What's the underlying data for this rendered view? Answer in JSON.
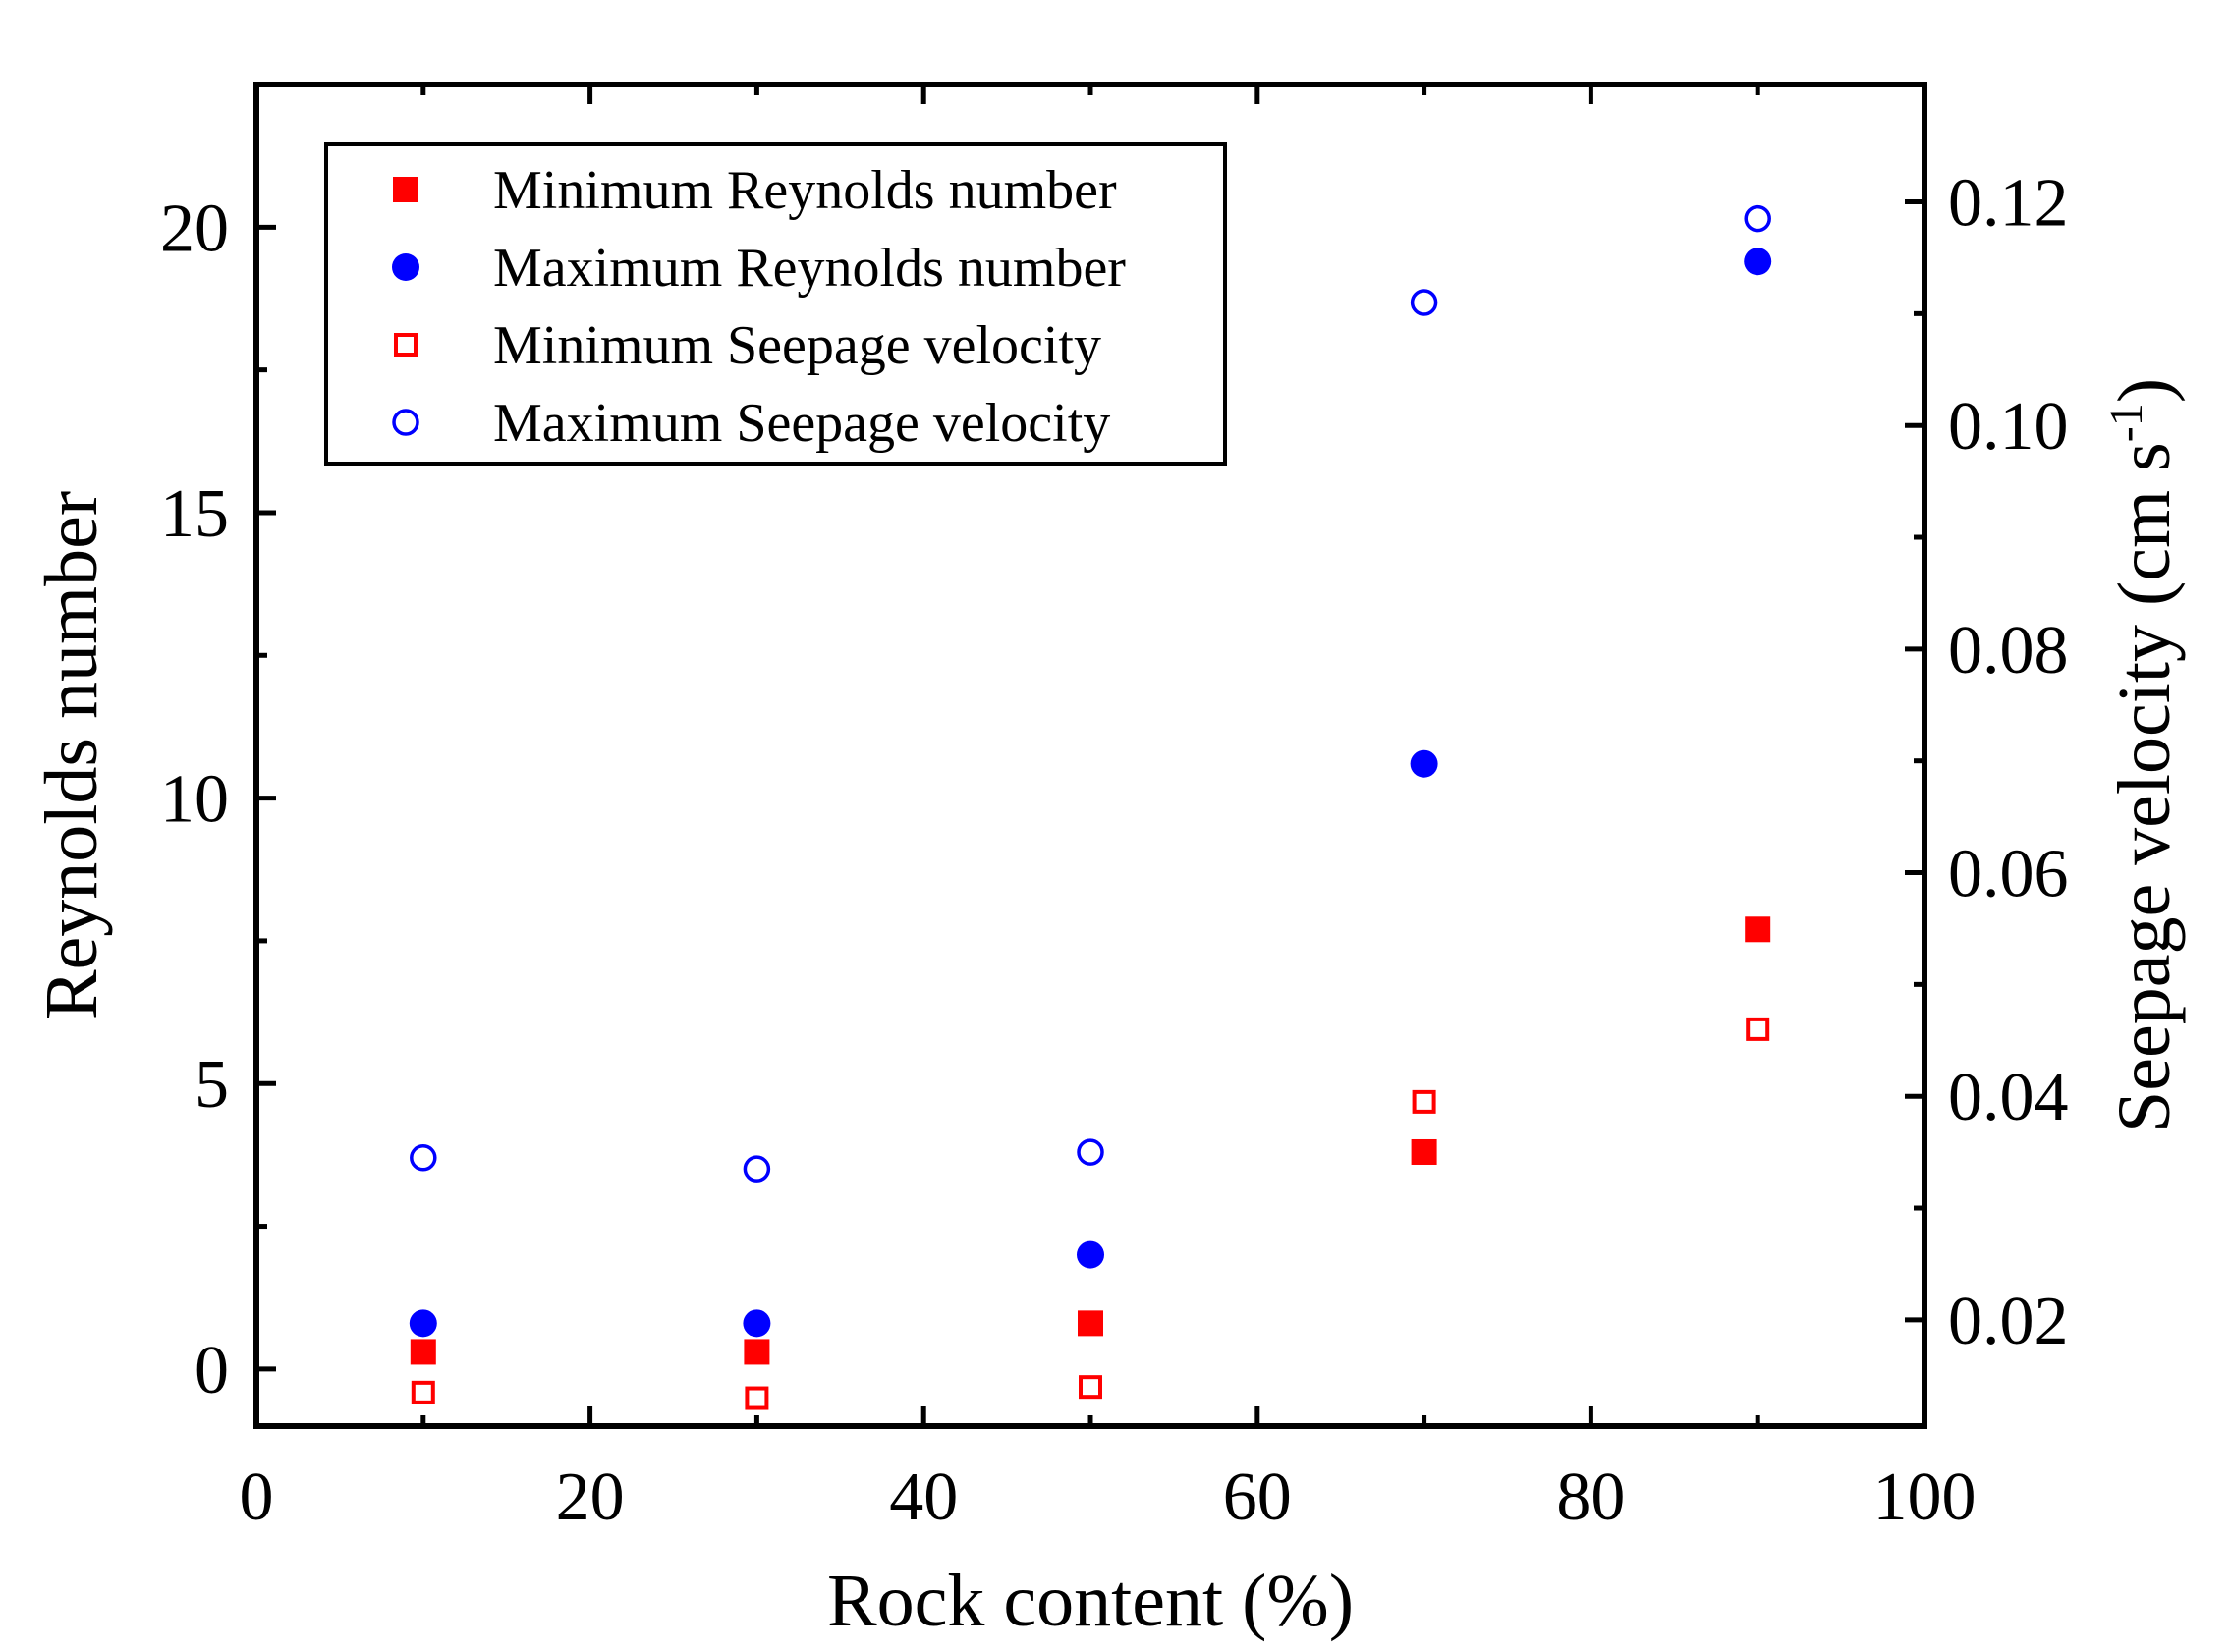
{
  "chart_data": {
    "type": "scatter",
    "title": "",
    "xlabel": "Rock content (%)",
    "ylabel": "Reynolds number",
    "y2label": "Seepage velocity (cm s",
    "y2label_sup": "-1",
    "y2label_end": ")",
    "xlim": [
      0,
      100
    ],
    "ylim": [
      -1,
      22.5
    ],
    "y2lim": [
      0.0105,
      0.1305
    ],
    "xticks": [
      0,
      20,
      40,
      60,
      80,
      100
    ],
    "yticks": [
      0,
      5,
      10,
      15,
      20
    ],
    "y2ticks": [
      0.02,
      0.04,
      0.06,
      0.08,
      0.1,
      0.12
    ],
    "xtick_labels": [
      "0",
      "20",
      "40",
      "60",
      "80",
      "100"
    ],
    "ytick_labels": [
      "0",
      "5",
      "10",
      "15",
      "20"
    ],
    "y2tick_labels": [
      "0.02",
      "0.04",
      "0.06",
      "0.08",
      "0.10",
      "0.12"
    ],
    "grid": false,
    "legend_position": "top-left",
    "x": [
      10,
      30,
      50,
      70,
      90
    ],
    "series": [
      {
        "name": "Minimum Reynolds number",
        "axis": "left",
        "marker": "square",
        "filled": true,
        "color": "#ff0000",
        "values": [
          0.3,
          0.3,
          0.8,
          3.8,
          7.7
        ]
      },
      {
        "name": "Maximum Reynolds number",
        "axis": "left",
        "marker": "circle",
        "filled": true,
        "color": "#0000ff",
        "values": [
          0.8,
          0.8,
          2.0,
          10.6,
          19.4
        ]
      },
      {
        "name": "Minimum Seepage velocity",
        "axis": "right",
        "marker": "square",
        "filled": false,
        "color": "#ff0000",
        "values": [
          0.0135,
          0.013,
          0.014,
          0.0395,
          0.046
        ]
      },
      {
        "name": "Maximum Seepage velocity",
        "axis": "right",
        "marker": "circle",
        "filled": false,
        "color": "#0000ff",
        "values": [
          0.0345,
          0.0335,
          0.035,
          0.111,
          0.1185
        ]
      }
    ]
  }
}
